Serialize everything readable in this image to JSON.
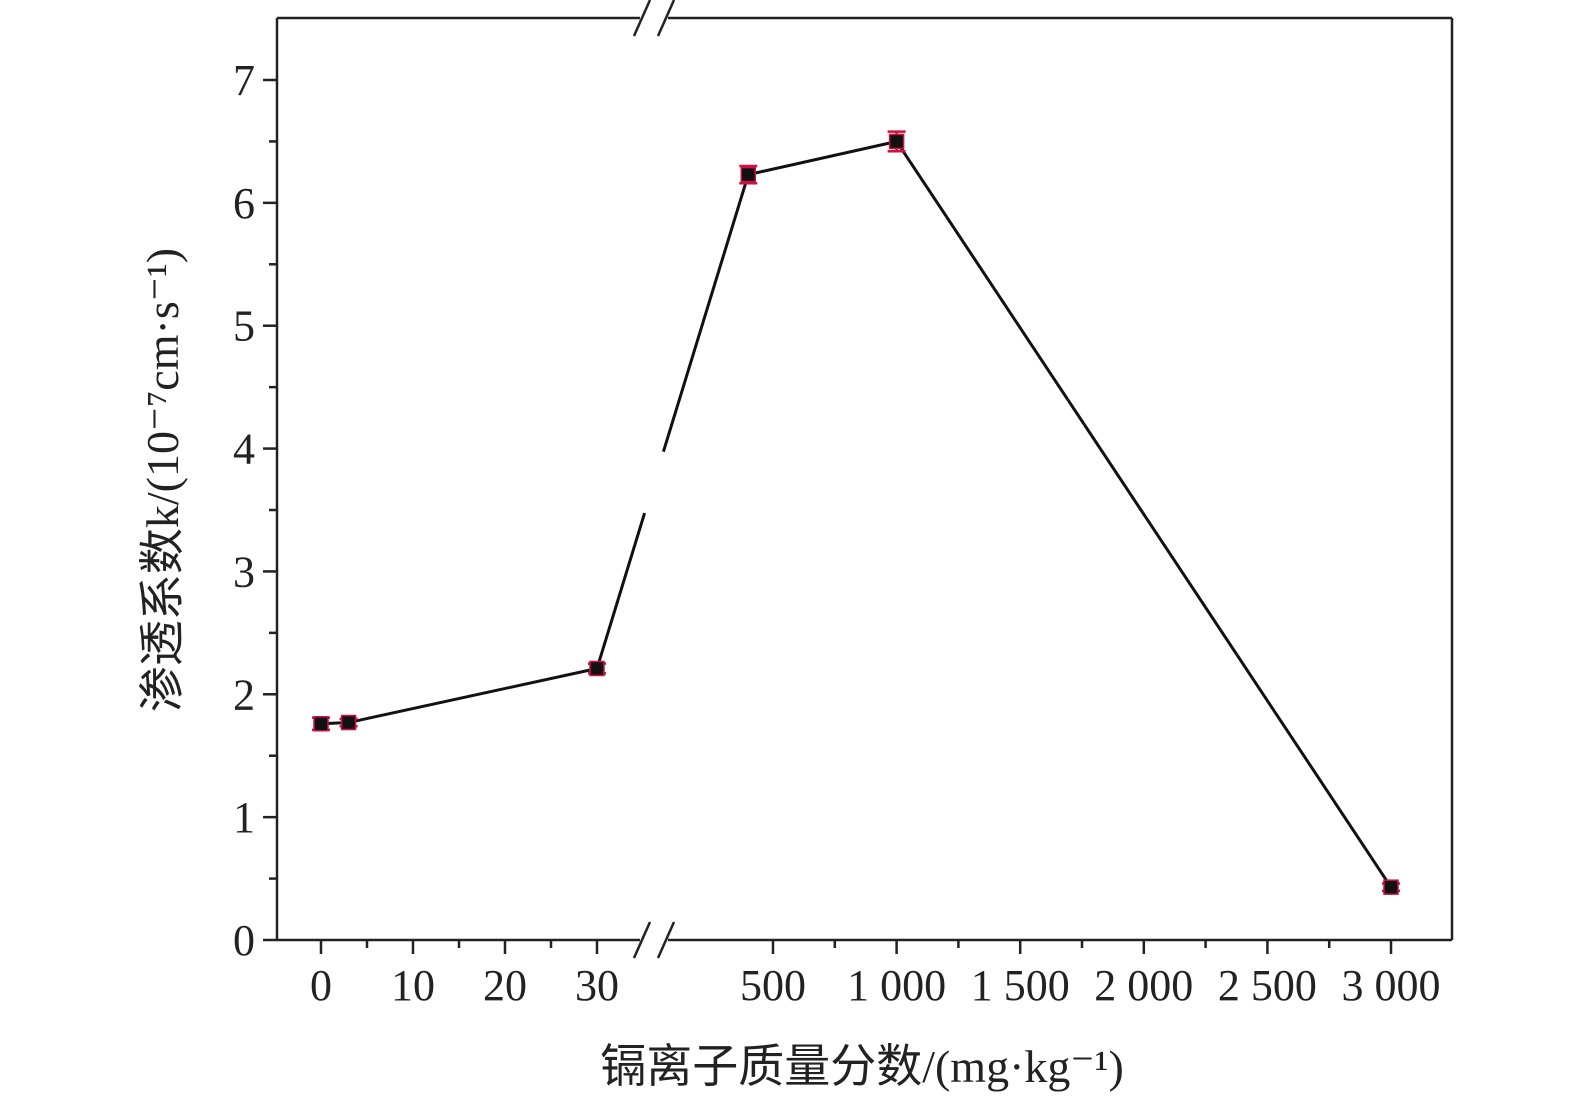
{
  "chart_data": {
    "type": "line",
    "title": "",
    "xlabel": "镉离子质量分数/(mg·kg⁻¹)",
    "ylabel": "渗透系数k/(10⁻⁷cm·s⁻¹)",
    "broken_x_axis": true,
    "x_segments": [
      {
        "range": [
          0,
          30
        ],
        "ticks": [
          "0",
          "10",
          "20",
          "30"
        ]
      },
      {
        "range": [
          500,
          3000
        ],
        "ticks": [
          "500",
          "1 000",
          "1 500",
          "2 000",
          "2 500",
          "3 000"
        ]
      }
    ],
    "y_ticks": [
      "0",
      "1",
      "2",
      "3",
      "4",
      "5",
      "6",
      "7"
    ],
    "ylim": [
      0,
      7
    ],
    "grid": false,
    "legend": "none",
    "series": [
      {
        "x": [
          0,
          3,
          30,
          400,
          1000,
          3000
        ],
        "y": [
          1.76,
          1.77,
          2.21,
          6.23,
          6.5,
          0.43
        ],
        "errors": [
          0.05,
          0.03,
          0.04,
          0.07,
          0.08,
          0.03
        ]
      }
    ],
    "colors": {
      "line": "#111111",
      "marker": "#111111",
      "error_bar": "#d01040"
    }
  }
}
